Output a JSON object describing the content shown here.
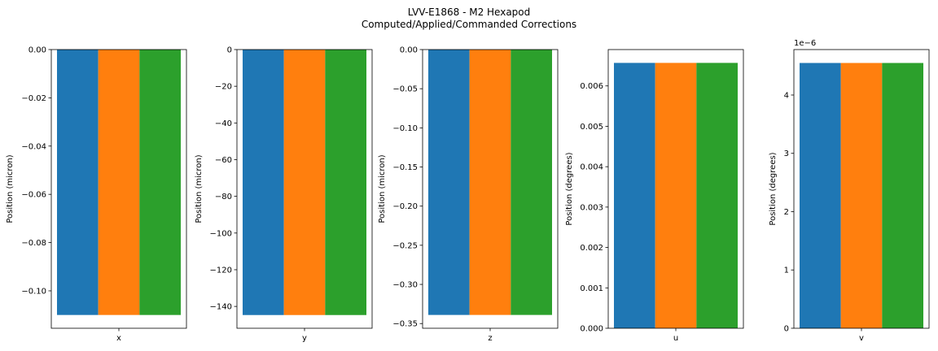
{
  "title_lines": [
    "LVV-E1868 - M2 Hexapod",
    "Computed/Applied/Commanded Corrections"
  ],
  "colors": [
    "#1f77b4",
    "#ff7f0e",
    "#2ca02c"
  ],
  "chart_data": [
    {
      "type": "bar",
      "category": "x",
      "ylabel": "Position (micron)",
      "values": [
        -0.11,
        -0.11,
        -0.11
      ],
      "ylim": [
        -0.1155,
        0.0
      ],
      "yticks": [
        0.0,
        -0.02,
        -0.04,
        -0.06,
        -0.08,
        -0.1
      ],
      "ytick_labels": [
        "0.00",
        "−0.02",
        "−0.04",
        "−0.06",
        "−0.08",
        "−0.10"
      ],
      "offset_label": ""
    },
    {
      "type": "bar",
      "category": "y",
      "ylabel": "Position (micron)",
      "values": [
        -144.7,
        -144.7,
        -144.7
      ],
      "ylim": [
        -151.9,
        0
      ],
      "yticks": [
        0,
        -20,
        -40,
        -60,
        -80,
        -100,
        -120,
        -140
      ],
      "ytick_labels": [
        "0",
        "−20",
        "−40",
        "−60",
        "−80",
        "−100",
        "−120",
        "−140"
      ],
      "offset_label": ""
    },
    {
      "type": "bar",
      "category": "z",
      "ylabel": "Position (micron)",
      "values": [
        -0.339,
        -0.339,
        -0.339
      ],
      "ylim": [
        -0.356,
        0.0
      ],
      "yticks": [
        0.0,
        -0.05,
        -0.1,
        -0.15,
        -0.2,
        -0.25,
        -0.3,
        -0.35
      ],
      "ytick_labels": [
        "0.00",
        "−0.05",
        "−0.10",
        "−0.15",
        "−0.20",
        "−0.25",
        "−0.30",
        "−0.35"
      ],
      "offset_label": ""
    },
    {
      "type": "bar",
      "category": "u",
      "ylabel": "Position (degrees)",
      "values": [
        0.00657,
        0.00657,
        0.00657
      ],
      "ylim": [
        0,
        0.0069
      ],
      "yticks": [
        0.0,
        0.001,
        0.002,
        0.003,
        0.004,
        0.005,
        0.006
      ],
      "ytick_labels": [
        "0.000",
        "0.001",
        "0.002",
        "0.003",
        "0.004",
        "0.005",
        "0.006"
      ],
      "offset_label": ""
    },
    {
      "type": "bar",
      "category": "v",
      "ylabel": "Position (degrees)",
      "values": [
        4.55,
        4.55,
        4.55
      ],
      "ylim": [
        0,
        4.78
      ],
      "yticks": [
        0,
        1,
        2,
        3,
        4
      ],
      "ytick_labels": [
        "0",
        "1",
        "2",
        "3",
        "4"
      ],
      "offset_label": "1e−6"
    }
  ]
}
